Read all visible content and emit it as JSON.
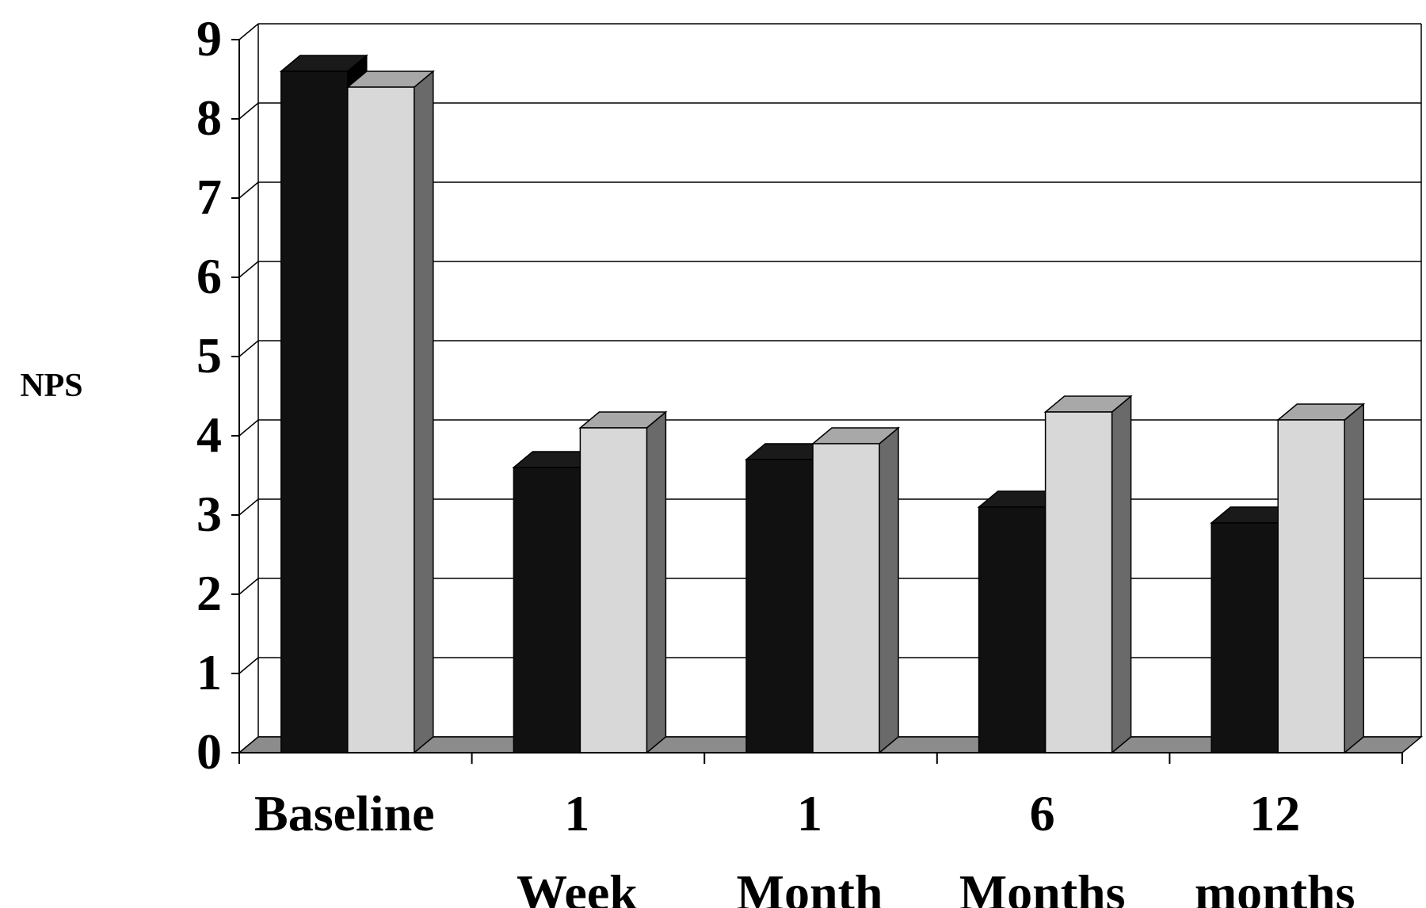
{
  "chart_data": {
    "type": "bar",
    "style": "3d-clustered",
    "ylabel": "NPS",
    "xlabel": "",
    "ylim": [
      0,
      9
    ],
    "y_ticks": [
      "0",
      "1",
      "2",
      "3",
      "4",
      "5",
      "6",
      "7",
      "8",
      "9"
    ],
    "grid": true,
    "legend": "none",
    "categories": [
      [
        "Baseline"
      ],
      [
        "1",
        "Week"
      ],
      [
        "1",
        "Month"
      ],
      [
        "6",
        "Months"
      ],
      [
        "12",
        "months"
      ]
    ],
    "series": [
      {
        "values": [
          8.6,
          3.6,
          3.7,
          3.1,
          2.9
        ],
        "color": "#111111",
        "top_color": "#1a1a1a",
        "side_color": "#000000"
      },
      {
        "values": [
          8.4,
          4.1,
          3.9,
          4.3,
          4.2
        ],
        "color": "#d8d8d8",
        "top_color": "#a8a8a8",
        "side_color": "#6a6a6a"
      }
    ]
  }
}
